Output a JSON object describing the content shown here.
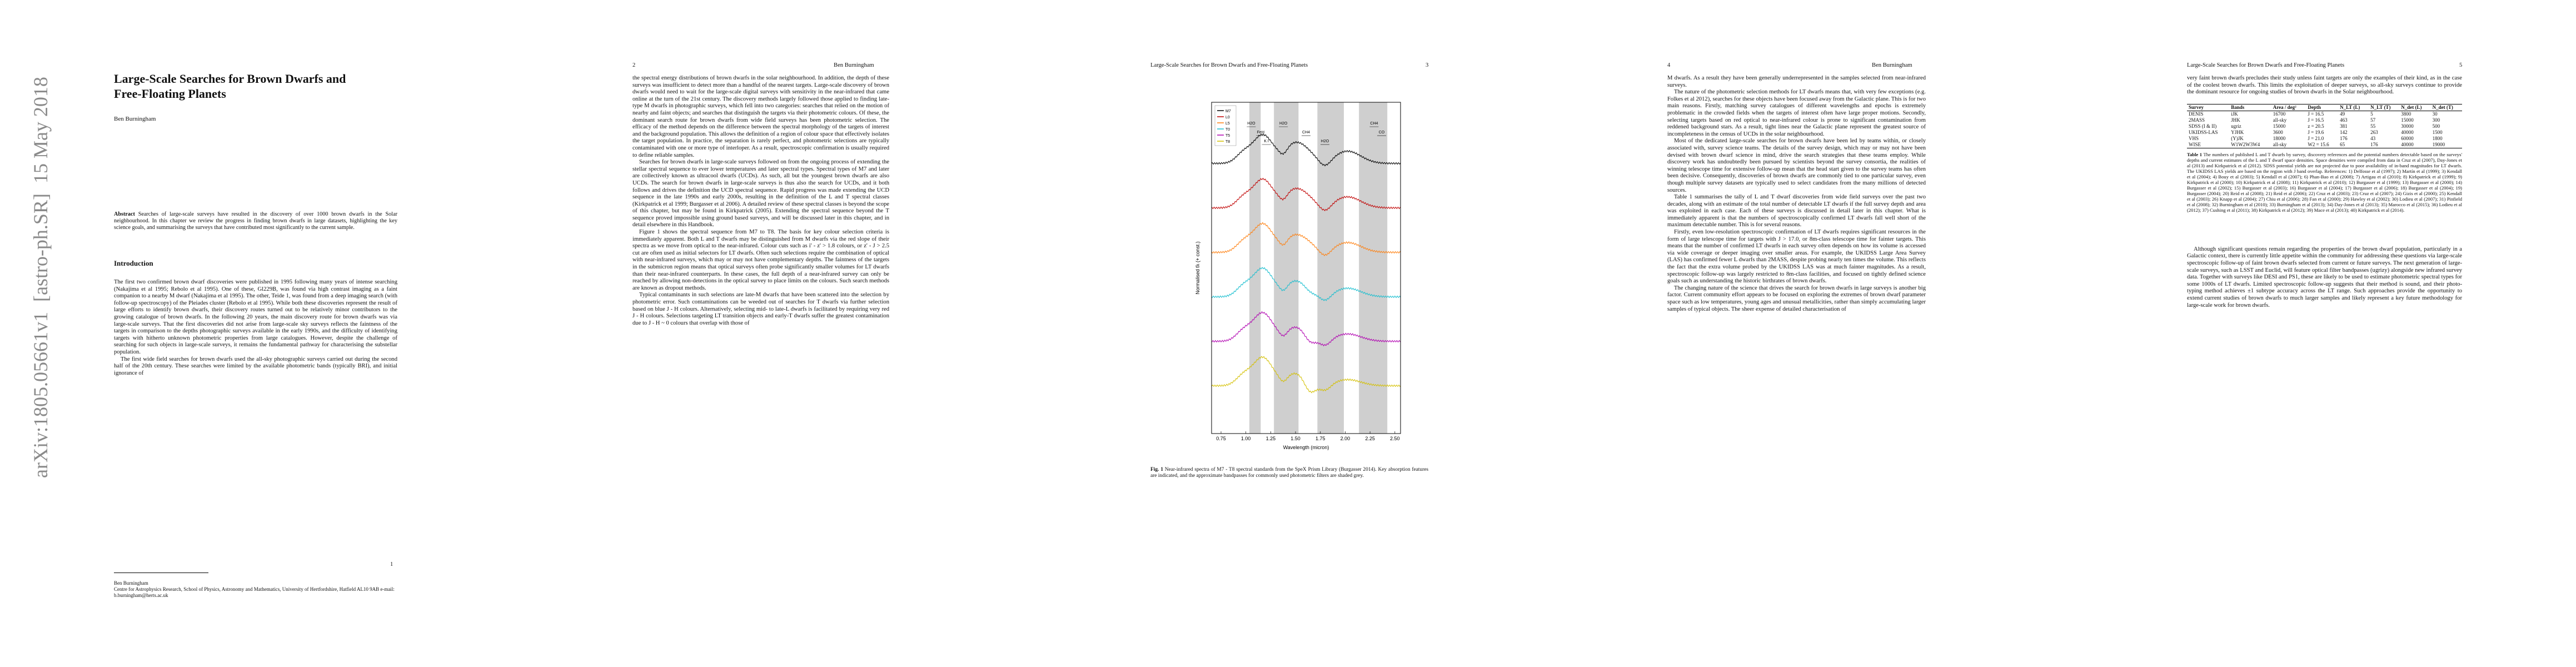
{
  "arxiv_stamp": "arXiv:1805.05661v1  [astro-ph.SR]  15 May 2018",
  "pages": [
    {
      "number": "1",
      "title": "Large-Scale Searches for Brown Dwarfs and Free-Floating Planets",
      "author": "Ben Burningham",
      "abstract_label": "Abstract",
      "abstract": "Searches of large-scale surveys have resulted in the discovery of over 1000 brown dwarfs in the Solar neighbourhood. In this chapter we review the progress in finding brown dwarfs in large datasets, highlighting the key science goals, and summarising the surveys that have contributed most significantly to the current sample.",
      "section": "Introduction",
      "paragraphs": [
        "The first two confirmed brown dwarf discoveries were published in 1995 following many years of intense searching (Nakajima et al 1995; Rebolo et al 1995). One of these, Gl229B, was found via high contrast imaging as a faint companion to a nearby M dwarf (Nakajima et al 1995). The other, Teide 1, was found from a deep imaging search (with follow-up spectroscopy) of the Pleiades cluster (Rebolo et al 1995). While both these discoveries represent the result of large efforts to identify brown dwarfs, their discovery routes turned out to be relatively minor contributors to the growing catalogue of brown dwarfs. In the following 20 years, the main discovery route for brown dwarfs was via large-scale surveys. That the first discoveries did not arise from large-scale sky surveys reflects the faintness of the targets in comparison to the depths photographic surveys available in the early 1990s, and the difficulty of identifying targets with hitherto unknown photometric properties from large catalogues. However, despite the challenge of searching for such objects in large-scale surveys, it remains the fundamental pathway for characterising the substellar population.",
        "The first wide field searches for brown dwarfs used the all-sky photographic surveys carried out during the second half of the 20th century. These searches were limited by the available photometric bands (typically BRI), and initial ignorance of"
      ],
      "footnote_name": "Ben Burningham",
      "footnote_address": "Centre for Astrophysics Research, School of Physics, Astronomy and Mathematics, University of Hertfordshire, Hatfield AL10 9AB e-mail: b.burningham@herts.ac.uk"
    },
    {
      "number": "2",
      "running_head": "Ben Burningham",
      "paragraphs": [
        "the spectral energy distributions of brown dwarfs in the solar neighbourhood. In addition, the depth of these surveys was insufficient to detect more than a handful of the nearest targets. Large-scale discovery of brown dwarfs would need to wait for the large-scale digital surveys with sensitivity in the near-infrared that came online at the turn of the 21st century. The discovery methods largely followed those applied to finding late-type M dwarfs in photographic surveys, which fell into two categories: searches that relied on the motion of nearby and faint objects; and searches that distinguish the targets via their photometric colours. Of these, the dominant search route for brown dwarfs from wide field surveys has been photometric selection. The efficacy of the method depends on the difference between the spectral morphology of the targets of interest and the background population. This allows the definition of a region of colour space that effectively isolates the target population. In practice, the separation is rarely perfect, and photometric selections are typically contaminated with one or more type of interloper. As a result, spectroscopic confirmation is usually required to define reliable samples.",
        "Searches for brown dwarfs in large-scale surveys followed on from the ongoing process of extending the stellar spectral sequence to ever lower temperatures and later spectral types. Spectral types of M7 and later are collectively known as ultracool dwarfs (UCDs). As such, all but the youngest brown dwarfs are also UCDs. The search for brown dwarfs in large-scale surveys is thus also the search for UCDs, and it both follows and drives the definition the UCD spectral sequence. Rapid progress was made extending the UCD sequence in the late 1990s and early 2000s, resulting in the definition of the L and T spectral classes (Kirkpatrick et al 1999; Burgasser et al 2006). A detailed review of these spectral classes is beyond the scope of this chapter, but may be found in Kirkpatrick (2005). Extending the spectral sequence beyond the T sequence proved impossible using ground based surveys, and will be discussed later in this chapter, and in detail elsewhere in this Handbook.",
        "Figure 1 shows the spectral sequence from M7 to T8. The basis for key colour selection criteria is immediately apparent. Both L and T dwarfs may be distinguished from M dwarfs via the red slope of their spectra as we move from optical to the near-infrared. Colour cuts such as i' - z' > 1.8 colours, or z' - J > 2.5 cut are often used as initial selectors for LT dwarfs. Often such selections require the combination of optical with near-infrared surveys, which may or may not have complementary depths. The faintness of the targets in the submicron region means that optical surveys often probe significantly smaller volumes for LT dwarfs than their near-infrared counterparts. In these cases, the full depth of a near-infrared survey can only be reached by allowing non-detections in the optical survey to place limits on the colours. Such search methods are known as dropout methods.",
        "Typical contaminants in such selections are late-M dwarfs that have been scattered into the selection by photometric error. Such contaminations can be weeded out of searches for T dwarfs via further selection based on blue J - H colours. Alternatively, selecting mid- to late-L dwarfs is facilitated by requiring very red J - H colours. Selections targeting LT transition objects and early-T dwarfs suffer the greatest contamination due to J - H ~ 0 colours that overlap with those of"
      ]
    },
    {
      "number": "3",
      "running_head": "Large-Scale Searches for Brown Dwarfs and Free-Floating Planets",
      "figure": {
        "legend": [
          "M7",
          "L0",
          "L5",
          "T0",
          "T5",
          "T8"
        ],
        "features": [
          "H2O",
          "FeH",
          "K I",
          "H2O",
          "CH4",
          "H2O",
          "CH4",
          "CO"
        ],
        "x_ticks": [
          "0.75",
          "1.00",
          "1.25",
          "1.50",
          "1.75",
          "2.00",
          "2.25",
          "2.50"
        ],
        "x_label": "Wavelength (micron)",
        "y_label": "Normalised fλ (+ const.)",
        "caption_label": "Fig. 1",
        "caption": "Near-infrared spectra of M7 - T8 spectral standards from the SpeX Prism Library (Burgasser 2014). Key absorption features are indicated, and the approximate bandpasses for commonly used photometric filters are shaded grey."
      }
    },
    {
      "number": "4",
      "running_head": "Ben Burningham",
      "paragraphs": [
        "M dwarfs. As a result they have been generally underrepresented in the samples selected from near-infrared surveys.",
        "The nature of the photometric selection methods for LT dwarfs means that, with very few exceptions (e.g. Folkes et al 2012), searches for these objects have been focused away from the Galactic plane. This is for two main reasons. Firstly, matching survey catalogues of different wavelengths and epochs is extremely problematic in the crowded fields when the targets of interest often have large proper motions. Secondly, selecting targets based on red optical to near-infrared colour is prone to significant contamination from reddened background stars. As a result, tight lines near the Galactic plane represent the greatest source of incompleteness in the census of UCDs in the solar neighbourhood.",
        "Most of the dedicated large-scale searches for brown dwarfs have been led by teams within, or closely associated with, survey science teams. The details of the survey design, which may or may not have been devised with brown dwarf science in mind, drive the search strategies that these teams employ. While discovery work has undoubtedly been pursued by scientists beyond the survey consortia, the realities of winning telescope time for extensive follow-up mean that the head start given to the survey teams has often been decisive. Consequently, discoveries of brown dwarfs are commonly tied to one particular survey, even though multiple survey datasets are typically used to select candidates from the many millions of detected sources.",
        "Table 1 summarises the tally of L and T dwarf discoveries from wide field surveys over the past two decades, along with an estimate of the total number of detectable LT dwarfs if the full survey depth and area was exploited in each case. Each of these surveys is discussed in detail later in this chapter. What is immediately apparent is that the numbers of spectroscopically confirmed LT dwarfs fall well short of the maximum detectable number. This is for several reasons.",
        "Firstly, even low-resolution spectroscopic confirmation of LT dwarfs requires significant resources in the form of large telescope time for targets with J > 17.0, or 8m-class telescope time for fainter targets. This means that the number of confirmed LT dwarfs in each survey often depends on how its volume is accessed via wide coverage or deeper imaging over smaller areas. For example, the UKIDSS Large Area Survey (LAS) has confirmed fewer L dwarfs than 2MASS, despite probing nearly ten times the volume. This reflects the fact that the extra volume probed by the UKIDSS LAS was at much fainter magnitudes. As a result, spectroscopic follow-up was largely restricted to 8m-class facilities, and focused on tightly defined science goals such as understanding the historic birthrates of brown dwarfs.",
        "The changing nature of the science that drives the search for brown dwarfs in large surveys is another big factor. Current community effort appears to be focused on exploring the extremes of brown dwarf parameter space such as low temperatures, young ages and unusual metallicities, rather than simply accumulating larger samples of typical objects. The sheer expense of detailed characterisation of"
      ]
    },
    {
      "number": "5",
      "running_head": "Large-Scale Searches for Brown Dwarfs and Free-Floating Planets",
      "paragraphs_top": [
        "very faint brown dwarfs precludes their study unless faint targets are only the examples of their kind, as in the case of the coolest brown dwarfs. This limits the exploitation of deeper surveys, so all-sky surveys continue to provide the dominant resource for ongoing studies of brown dwarfs in the Solar neighbourhood."
      ],
      "table": {
        "headers": [
          "Survey",
          "Bands",
          "Area / deg²",
          "Depth",
          "N_LT (L)",
          "N_LT (T)",
          "N_det (L)",
          "N_det (T)"
        ],
        "rows": [
          [
            "DENIS",
            "iJK",
            "16700",
            "J = 16.5",
            "49",
            "5",
            "3800",
            "30"
          ],
          [
            "2MASS",
            "JHK",
            "all-sky",
            "J = 16.5",
            "463",
            "57",
            "15000",
            "300"
          ],
          [
            "SDSS (I & II)",
            "ugriz",
            "15000",
            "z = 20.5",
            "381",
            "55",
            "30000",
            "500"
          ],
          [
            "UKIDSS-LAS",
            "YJHK",
            "3600",
            "J = 19.6",
            "142",
            "263",
            "40000",
            "1500"
          ],
          [
            "VHS",
            "(Y)JK",
            "18000",
            "J = 21.0",
            "176",
            "43",
            "60000",
            "1800"
          ],
          [
            "WISE",
            "W1W2W3W4",
            "all-sky",
            "W2 = 15.6",
            "65",
            "176",
            "40000",
            "19000"
          ]
        ]
      },
      "table_caption_label": "Table 1",
      "table_caption": "The numbers of published L and T dwarfs by survey, discovery references and the potential numbers detectable based on the surveys' depths and current estimates of the L and T dwarf space densities. Space densities were compiled from data in Cruz et al (2007), Day-Jones et al (2013) and Kirkpatrick et al (2012). SDSS potential yields are not projected due to poor availability of in-band magnitudes for LT dwarfs. The UKIDSS LAS yields are based on the region with J band overlap. References: 1) Delfosse et al (1997); 2) Martín et al (1999); 3) Kendall et al (2004); 4) Bouy et al (2003); 5) Kendall et al (2007); 6) Phan-Bao et al (2008); 7) Artigau et al (2010); 8) Kirkpatrick et al (1999); 9) Kirkpatrick et al (2000); 10) Kirkpatrick et al (2008); 11) Kirkpatrick et al (2010); 12) Burgasser et al (1999); 13) Burgasser et al (2000); 14) Burgasser et al (2002); 15) Burgasser et al (2003); 16) Burgasser et al (2004); 17) Burgasser et al (2006); 18) Burgasser et al (2004); 19) Burgasser (2004); 20) Reid et al (2008); 21) Reid et al (2006); 22) Cruz et al (2003); 23) Cruz et al (2007); 24) Gizis et al (2000); 25) Kendall et al (2003); 26) Knapp et al (2004); 27) Chiu et al (2006); 28) Fan et al (2000); 29) Hawley et al (2002); 30) Lodieu et al (2007); 31) Pinfield et al (2008); 32) Burningham et al (2010); 33) Burningham et al (2013); 34) Day-Jones et al (2013); 35) Marocco et al (2015); 36) Lodieu et al (2012); 37) Cushing et al (2011); 38) Kirkpatrick et al (2012); 39) Mace et al (2013); 40) Kirkpatrick et al (2014).",
      "paragraphs_bottom": [
        "Although significant questions remain regarding the properties of the brown dwarf population, particularly in a Galactic context, there is currently little appetite within the community for addressing these questions via large-scale spectroscopic follow-up of faint brown dwarfs selected from current or future surveys. The next generation of large-scale surveys, such as LSST and Euclid, will feature optical filter bandpasses (ugrizy) alongside new infrared survey data. Together with surveys like DESI and PS1, these are likely to be used to estimate photometric spectral types for some 1000s of LT dwarfs. Limited spectroscopic follow-up suggests that their method is sound, and their photo-typing method achieves ±1 subtype accuracy across the LT range. Such approaches provide the opportunity to extend current studies of brown dwarfs to much larger samples and likely represent a key future methodology for large-scale work for brown dwarfs."
      ]
    }
  ]
}
